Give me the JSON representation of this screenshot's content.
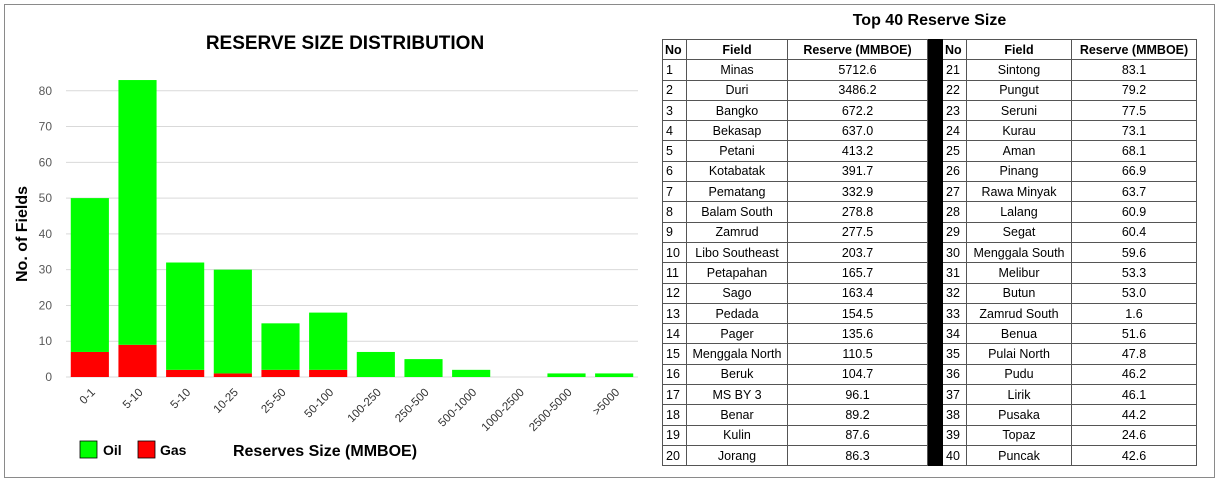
{
  "chart_data": {
    "type": "bar",
    "stacked": true,
    "title": "RESERVE SIZE DISTRIBUTION",
    "xlabel": "Reserves Size (MMBOE)",
    "ylabel": "No. of Fields",
    "categories": [
      "0-1",
      "5-10",
      "5-10",
      "10-25",
      "25-50",
      "50-100",
      "100-250",
      "250-500",
      "500-1000",
      "1000-2500",
      "2500-5000",
      ">5000"
    ],
    "series": [
      {
        "name": "Gas",
        "color": "#ff0000",
        "values": [
          7,
          9,
          2,
          1,
          2,
          2,
          0,
          0,
          0,
          0,
          0,
          0
        ]
      },
      {
        "name": "Oil",
        "color": "#00ff00",
        "values": [
          43,
          74,
          30,
          29,
          13,
          16,
          7,
          5,
          2,
          0,
          1,
          1
        ]
      }
    ],
    "totals": [
      50,
      83,
      32,
      30,
      15,
      18,
      7,
      5,
      2,
      0,
      1,
      1
    ],
    "ylim": [
      0,
      90
    ],
    "yticks": [
      0,
      10,
      20,
      30,
      40,
      50,
      60,
      70,
      80
    ],
    "grid": true,
    "legend": {
      "placement": "bottom-left",
      "items": [
        "Oil",
        "Gas"
      ]
    }
  },
  "table": {
    "title": "Top 40 Reserve Size",
    "headers": {
      "no": "No",
      "field": "Field",
      "reserve": "Reserve (MMBOE)"
    },
    "left_rows": [
      {
        "no": "1",
        "field": "Minas",
        "reserve": "5712.6"
      },
      {
        "no": "2",
        "field": "Duri",
        "reserve": "3486.2"
      },
      {
        "no": "3",
        "field": "Bangko",
        "reserve": "672.2"
      },
      {
        "no": "4",
        "field": "Bekasap",
        "reserve": "637.0"
      },
      {
        "no": "5",
        "field": "Petani",
        "reserve": "413.2"
      },
      {
        "no": "6",
        "field": "Kotabatak",
        "reserve": "391.7"
      },
      {
        "no": "7",
        "field": "Pematang",
        "reserve": "332.9"
      },
      {
        "no": "8",
        "field": "Balam South",
        "reserve": "278.8"
      },
      {
        "no": "9",
        "field": "Zamrud",
        "reserve": "277.5"
      },
      {
        "no": "10",
        "field": "Libo Southeast",
        "reserve": "203.7"
      },
      {
        "no": "11",
        "field": "Petapahan",
        "reserve": "165.7"
      },
      {
        "no": "12",
        "field": "Sago",
        "reserve": "163.4"
      },
      {
        "no": "13",
        "field": "Pedada",
        "reserve": "154.5"
      },
      {
        "no": "14",
        "field": "Pager",
        "reserve": "135.6"
      },
      {
        "no": "15",
        "field": "Menggala North",
        "reserve": "110.5"
      },
      {
        "no": "16",
        "field": "Beruk",
        "reserve": "104.7"
      },
      {
        "no": "17",
        "field": "MS BY 3",
        "reserve": "96.1"
      },
      {
        "no": "18",
        "field": "Benar",
        "reserve": "89.2"
      },
      {
        "no": "19",
        "field": "Kulin",
        "reserve": "87.6"
      },
      {
        "no": "20",
        "field": "Jorang",
        "reserve": "86.3"
      }
    ],
    "right_rows": [
      {
        "no": "21",
        "field": "Sintong",
        "reserve": "83.1"
      },
      {
        "no": "22",
        "field": "Pungut",
        "reserve": "79.2"
      },
      {
        "no": "23",
        "field": "Seruni",
        "reserve": "77.5"
      },
      {
        "no": "24",
        "field": "Kurau",
        "reserve": "73.1"
      },
      {
        "no": "25",
        "field": "Aman",
        "reserve": "68.1"
      },
      {
        "no": "26",
        "field": "Pinang",
        "reserve": "66.9"
      },
      {
        "no": "27",
        "field": "Rawa Minyak",
        "reserve": "63.7"
      },
      {
        "no": "28",
        "field": "Lalang",
        "reserve": "60.9"
      },
      {
        "no": "29",
        "field": "Segat",
        "reserve": "60.4"
      },
      {
        "no": "30",
        "field": "Menggala South",
        "reserve": "59.6"
      },
      {
        "no": "31",
        "field": "Melibur",
        "reserve": "53.3"
      },
      {
        "no": "32",
        "field": "Butun",
        "reserve": "53.0"
      },
      {
        "no": "33",
        "field": "Zamrud South",
        "reserve": "1.6"
      },
      {
        "no": "34",
        "field": "Benua",
        "reserve": "51.6"
      },
      {
        "no": "35",
        "field": "Pulai North",
        "reserve": "47.8"
      },
      {
        "no": "36",
        "field": "Pudu",
        "reserve": "46.2"
      },
      {
        "no": "37",
        "field": "Lirik",
        "reserve": "46.1"
      },
      {
        "no": "38",
        "field": "Pusaka",
        "reserve": "44.2"
      },
      {
        "no": "39",
        "field": "Topaz",
        "reserve": "24.6"
      },
      {
        "no": "40",
        "field": "Puncak",
        "reserve": "42.6"
      }
    ]
  }
}
